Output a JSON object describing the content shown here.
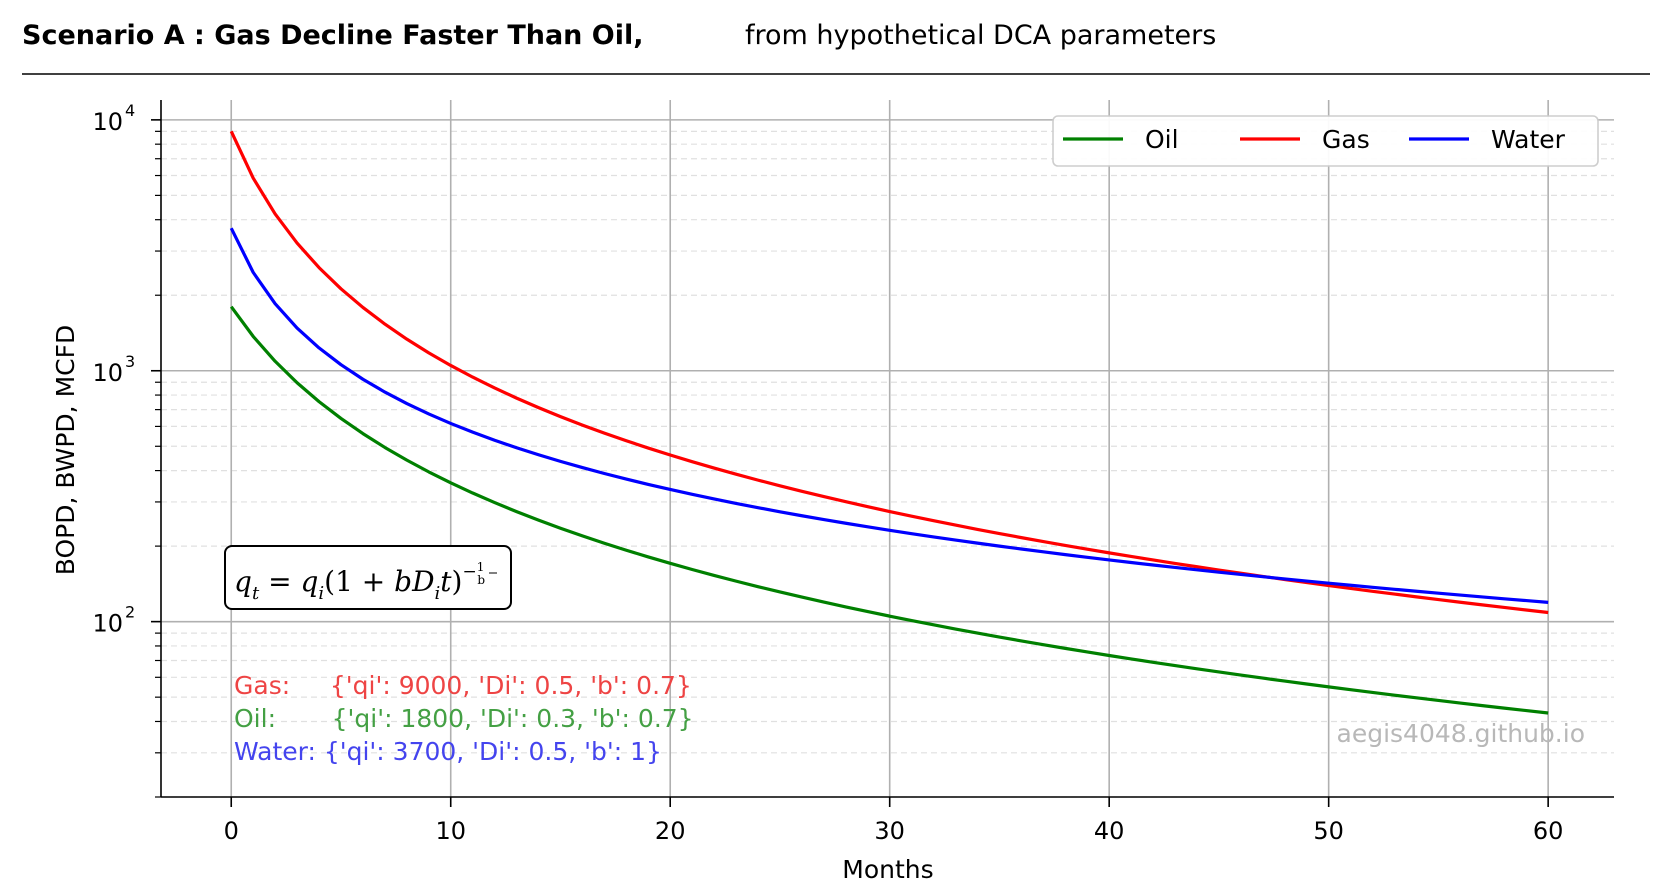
{
  "header": {
    "title_bold": "Scenario A :  Gas Decline Faster Than Oil,",
    "title_rest": "from hypothetical DCA parameters"
  },
  "chart_data": {
    "type": "line",
    "xlabel": "Months",
    "ylabel": "BOPD, BWPD, MCFD",
    "xlim": [
      -3.2,
      63
    ],
    "ylim": [
      20,
      12000
    ],
    "yscale": "log",
    "xticks": [
      0,
      10,
      20,
      30,
      40,
      50,
      60
    ],
    "xtick_labels": [
      "0",
      "10",
      "20",
      "30",
      "40",
      "50",
      "60"
    ],
    "yticks": [
      100,
      1000,
      10000
    ],
    "ytick_bases": [
      "10",
      "10",
      "10"
    ],
    "ytick_exps": [
      "2",
      "3",
      "4"
    ],
    "grid": true,
    "legend": {
      "position": "top-right",
      "entries": [
        "Oil",
        "Gas",
        "Water"
      ]
    },
    "series": [
      {
        "name": "Oil",
        "color": "#008000",
        "model": "hyperbolic",
        "qi": 1800,
        "Di": 0.3,
        "b": 0.7,
        "x_range": [
          0,
          60
        ],
        "annotation": "Oil:       {'qi': 1800, 'Di': 0.3, 'b': 0.7}"
      },
      {
        "name": "Gas",
        "color": "#ff0000",
        "model": "hyperbolic",
        "qi": 9000,
        "Di": 0.5,
        "b": 0.7,
        "x_range": [
          0,
          60
        ],
        "annotation": "Gas:     {'qi': 9000, 'Di': 0.5, 'b': 0.7}"
      },
      {
        "name": "Water",
        "color": "#0000ff",
        "model": "hyperbolic",
        "qi": 3700,
        "Di": 0.5,
        "b": 1,
        "x_range": [
          0,
          60
        ],
        "annotation": "Water: {'qi': 3700, 'Di': 0.5, 'b': 1}"
      }
    ],
    "annotation_colors": [
      "#ee4444",
      "#44a044",
      "#4444ee"
    ],
    "equation": "q_t = q_i(1 + bD_i t)^{-1/b}",
    "watermark": "aegis4048.github.io"
  }
}
